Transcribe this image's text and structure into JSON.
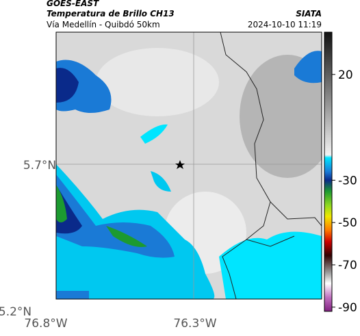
{
  "header": {
    "source": "GOES-EAST",
    "product": "Temperatura de Brillo CH13",
    "agency": "SIATA",
    "region": "Vía Medellín - Quibdó 50km",
    "datetime": "2024-10-10 11:19"
  },
  "axes": {
    "y_labels": [
      "5.7°N",
      "5.2°N"
    ],
    "x_labels": [
      "76.8°W",
      "76.3°W"
    ]
  },
  "colorbar": {
    "lim": [
      -92,
      40
    ],
    "ticks": [
      20,
      -30,
      -50,
      -70,
      -90
    ]
  }
}
